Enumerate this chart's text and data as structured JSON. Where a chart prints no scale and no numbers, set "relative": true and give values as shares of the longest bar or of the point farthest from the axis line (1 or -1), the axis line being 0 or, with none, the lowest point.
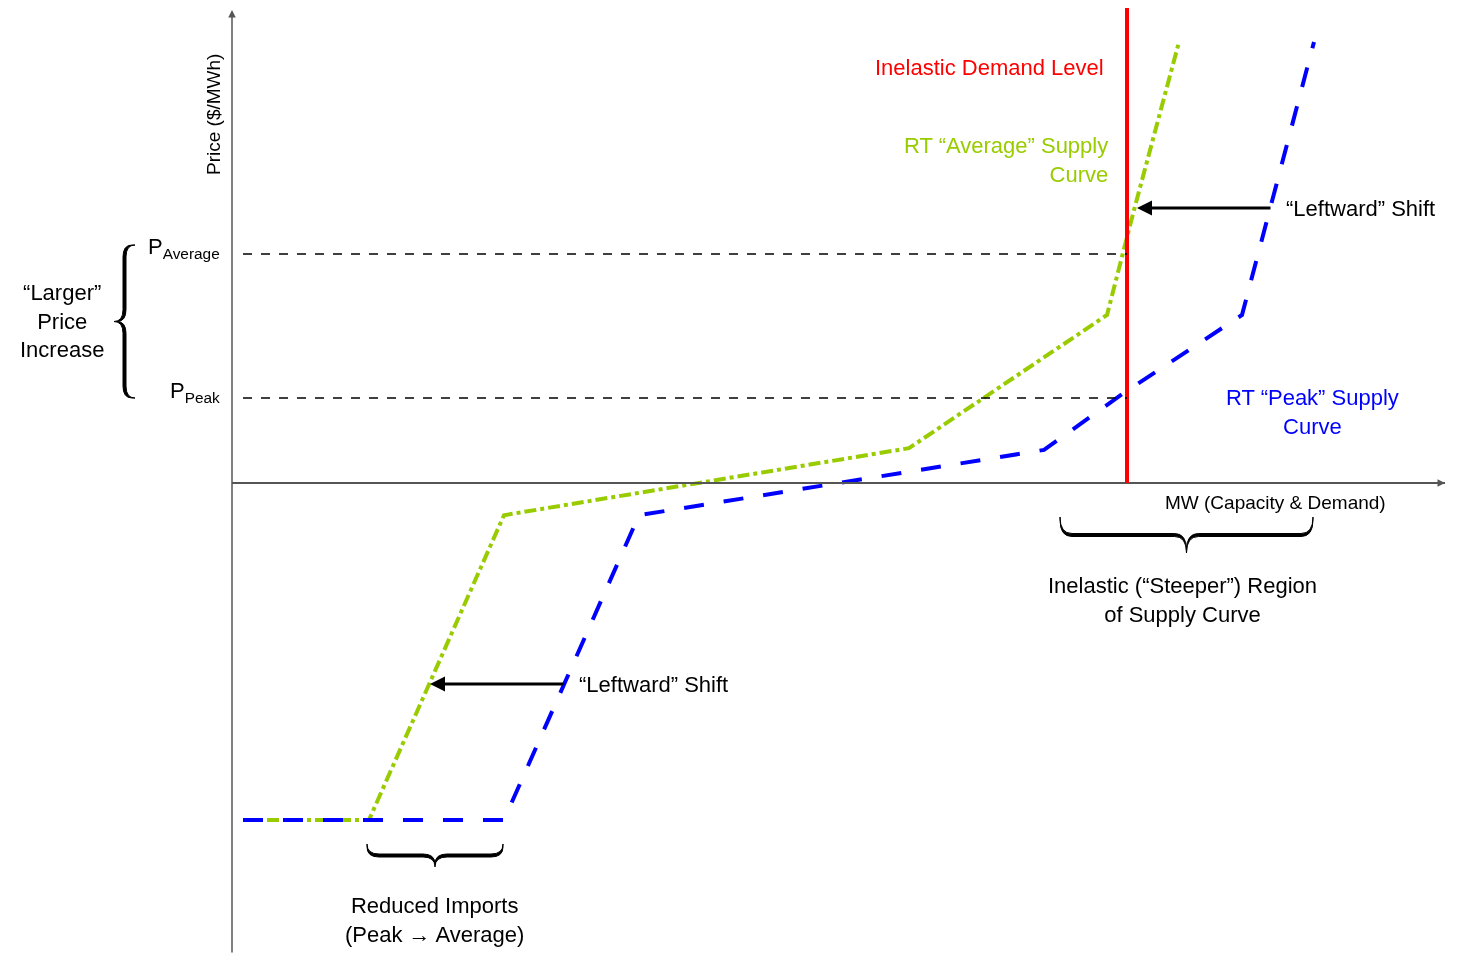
{
  "chart_data": {
    "type": "line",
    "relative": true,
    "xlabel": "MW (Capacity & Demand)",
    "ylabel": "Price ($/MWh)",
    "legend": false,
    "marker": "none",
    "categories": [
      null,
      null,
      null,
      null,
      null,
      null,
      null,
      null,
      null,
      null,
      null,
      null,
      null,
      null,
      null,
      null,
      null,
      null,
      null,
      null,
      null,
      null,
      null,
      null,
      null,
      null,
      null,
      null,
      null,
      null,
      null,
      null,
      null,
      null,
      null,
      null,
      null,
      null,
      null,
      null,
      null,
      null,
      null,
      null,
      null,
      null,
      null,
      null,
      null,
      null,
      null,
      null,
      null,
      null,
      null,
      null,
      null,
      null,
      null,
      null,
      null,
      null,
      null,
      null,
      null,
      null,
      null,
      null,
      null,
      null,
      null,
      null,
      null,
      null,
      null,
      null,
      null,
      null,
      null,
      null,
      null,
      null,
      null,
      null,
      null,
      null,
      null,
      null,
      null,
      null,
      null,
      null,
      null,
      null,
      null,
      null,
      null,
      null,
      null,
      null,
      null,
      null,
      null,
      null,
      null,
      null,
      null,
      null,
      null,
      null,
      null,
      null,
      null,
      null,
      null,
      null,
      null,
      null,
      null,
      null
    ],
    "series": [
      {
        "name": "RT “Average” Supply\nCurve",
        "color": "#99cc00",
        "line_style": "dashdot",
        "values": [
          -0.764,
          null,
          null,
          null,
          null,
          null,
          null,
          null,
          null,
          null,
          null,
          null,
          null,
          null,
          -0.764,
          null,
          null,
          null,
          null,
          null,
          null,
          null,
          null,
          null,
          null,
          null,
          null,
          null,
          null,
          -0.073,
          null,
          null,
          null,
          null,
          null,
          null,
          null,
          null,
          null,
          null,
          null,
          null,
          null,
          null,
          null,
          null,
          null,
          null,
          null,
          null,
          null,
          null,
          null,
          null,
          null,
          null,
          null,
          null,
          null,
          null,
          null,
          null,
          null,
          null,
          null,
          null,
          null,
          null,
          null,
          null,
          null,
          null,
          null,
          null,
          0.079,
          null,
          null,
          null,
          null,
          null,
          null,
          null,
          null,
          null,
          null,
          null,
          null,
          null,
          null,
          null,
          null,
          null,
          null,
          null,
          null,
          null,
          0.381,
          null,
          null,
          0.619,
          null,
          null,
          null,
          null,
          1,
          null,
          null,
          null,
          null,
          null,
          null,
          null,
          null,
          null,
          null,
          null,
          null,
          null,
          null,
          null
        ]
      },
      {
        "name": "RT “Peak” Supply\nCurve",
        "color": "#0000ff",
        "line_style": "dashed",
        "values": [
          -0.764,
          null,
          null,
          null,
          null,
          null,
          null,
          null,
          null,
          null,
          null,
          null,
          null,
          null,
          null,
          null,
          null,
          null,
          null,
          null,
          null,
          null,
          null,
          null,
          null,
          null,
          null,
          null,
          null,
          -0.764,
          null,
          null,
          null,
          null,
          null,
          null,
          null,
          null,
          null,
          null,
          null,
          null,
          null,
          null,
          -0.073,
          null,
          null,
          null,
          null,
          null,
          null,
          null,
          null,
          null,
          null,
          null,
          null,
          null,
          null,
          null,
          null,
          null,
          null,
          null,
          null,
          null,
          null,
          null,
          null,
          null,
          null,
          null,
          null,
          null,
          null,
          null,
          null,
          null,
          null,
          null,
          null,
          null,
          null,
          null,
          null,
          null,
          null,
          null,
          null,
          0.075,
          null,
          null,
          null,
          null,
          null,
          null,
          null,
          null,
          0.206,
          null,
          null,
          null,
          null,
          null,
          null,
          null,
          null,
          null,
          null,
          null,
          null,
          0.381,
          null,
          null,
          null,
          null,
          null,
          null,
          null,
          1
        ]
      }
    ],
    "ref_lines": [
      {
        "axis": "y",
        "value": 0.519,
        "label": "P$_{Average}$",
        "color": "#000000",
        "line_style": "dashed"
      },
      {
        "axis": "y",
        "value": 0.193,
        "label": "P$_{Peak}$",
        "color": "#000000",
        "line_style": "dashed"
      }
    ],
    "annotations": [
      "Inelastic Demand Level",
      "“Leftward” Shift",
      "“Leftward” Shift",
      "“Larger”\nPrice\nIncrease",
      "Inelastic (“Steeper”) Region\nof Supply Curve",
      "Reduced Imports\n(Peak → Average)"
    ]
  }
}
